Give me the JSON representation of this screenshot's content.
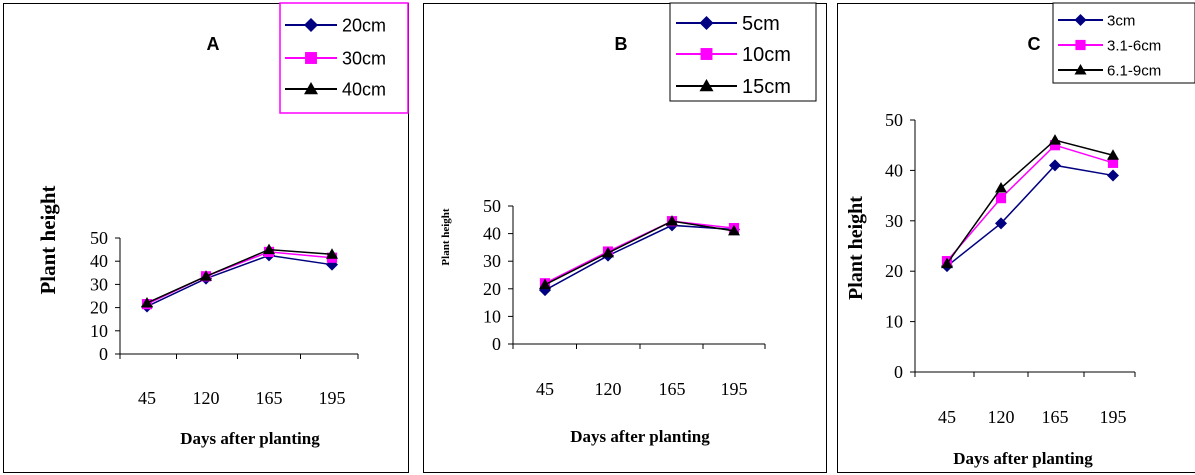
{
  "chart_data": [
    {
      "type": "line",
      "title": "A",
      "xlabel": "Days after planting",
      "ylabel": "Plant height",
      "categories": [
        "45",
        "120",
        "165",
        "195"
      ],
      "ylim": [
        0,
        50
      ],
      "yticks": [
        "0",
        "10",
        "20",
        "30",
        "40",
        "50"
      ],
      "legend_position": "top-right",
      "series": [
        {
          "name": "20cm",
          "color": "#000080",
          "marker": "diamond",
          "values": [
            20.5,
            32.5,
            42.5,
            38.5
          ]
        },
        {
          "name": "30cm",
          "color": "#ff00ff",
          "marker": "square",
          "values": [
            21.5,
            33.5,
            44.0,
            41.5
          ]
        },
        {
          "name": "40cm",
          "color": "#000000",
          "marker": "triangle",
          "values": [
            22.0,
            33.5,
            45.0,
            43.0
          ]
        }
      ]
    },
    {
      "type": "line",
      "title": "B",
      "xlabel": "Days after planting",
      "ylabel": "Plant height",
      "categories": [
        "45",
        "120",
        "165",
        "195"
      ],
      "ylim": [
        0,
        50
      ],
      "yticks": [
        "0",
        "10",
        "20",
        "30",
        "40",
        "50"
      ],
      "legend_position": "top-right",
      "series": [
        {
          "name": "5cm",
          "color": "#000080",
          "marker": "diamond",
          "values": [
            19.5,
            32.0,
            43.0,
            41.5
          ]
        },
        {
          "name": "10cm",
          "color": "#ff00ff",
          "marker": "square",
          "values": [
            22.0,
            33.5,
            44.5,
            42.0
          ]
        },
        {
          "name": "15cm",
          "color": "#000000",
          "marker": "triangle",
          "values": [
            21.5,
            33.0,
            44.5,
            41.0
          ]
        }
      ]
    },
    {
      "type": "line",
      "title": "C",
      "xlabel": "Days after planting",
      "ylabel": "Plant height",
      "categories": [
        "45",
        "120",
        "165",
        "195"
      ],
      "ylim": [
        0,
        50
      ],
      "yticks": [
        "0",
        "10",
        "20",
        "30",
        "40",
        "50"
      ],
      "legend_position": "top-right",
      "series": [
        {
          "name": "3cm",
          "color": "#000080",
          "marker": "diamond",
          "values": [
            21.0,
            29.5,
            41.0,
            39.0
          ]
        },
        {
          "name": "3.1-6cm",
          "color": "#ff00ff",
          "marker": "square",
          "values": [
            22.0,
            34.5,
            45.0,
            41.5
          ]
        },
        {
          "name": "6.1-9cm",
          "color": "#000000",
          "marker": "triangle",
          "values": [
            21.5,
            36.5,
            46.0,
            43.0
          ]
        }
      ]
    }
  ]
}
